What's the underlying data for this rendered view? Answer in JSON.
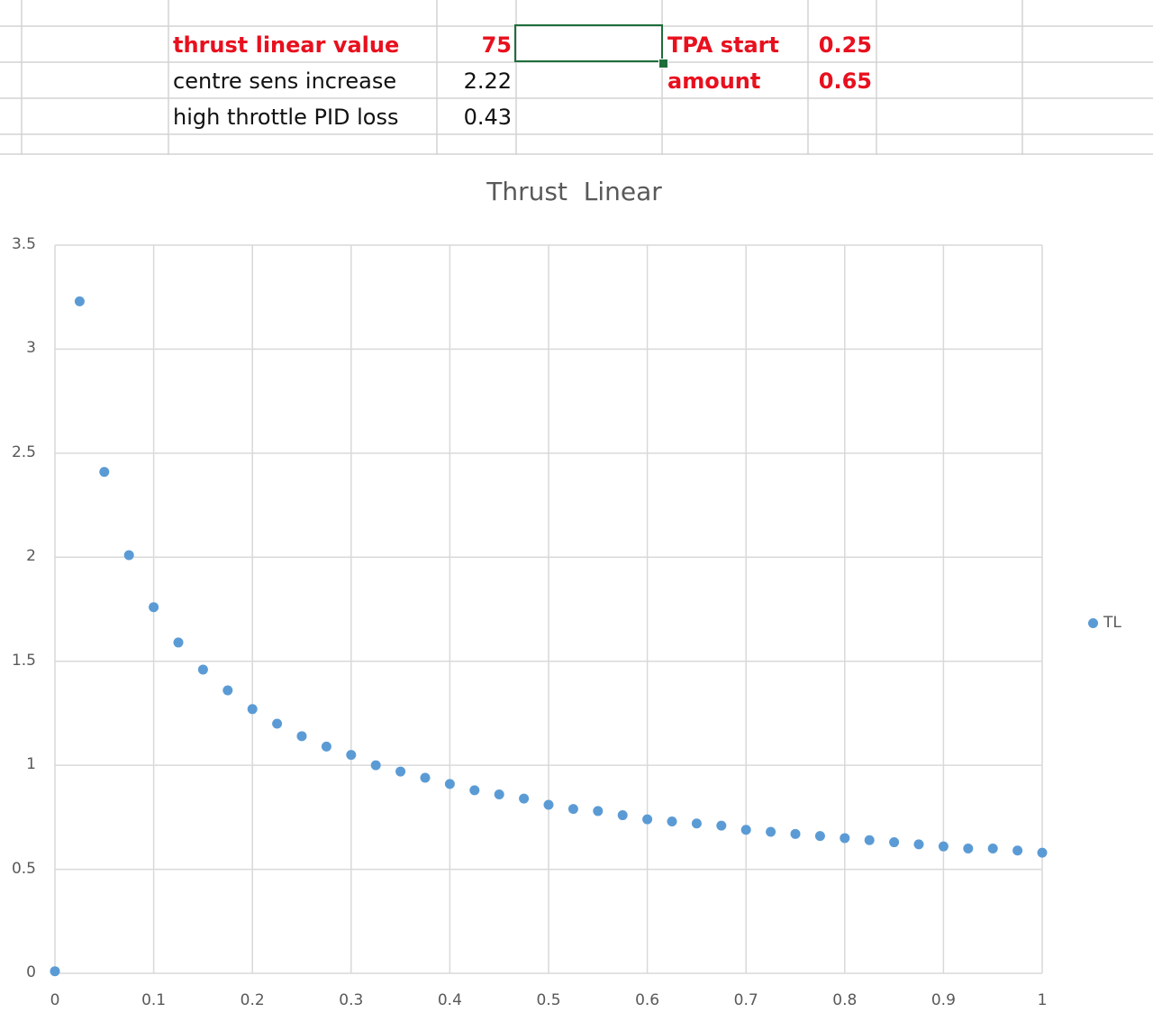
{
  "sheet": {
    "rows": [
      {
        "label": "thrust linear value",
        "value": "75",
        "label2": "TPA start",
        "value2": "0.25"
      },
      {
        "label": "centre sens increase",
        "value": "2.22",
        "label2": "amount",
        "value2": "0.65"
      },
      {
        "label": "high throttle PID loss",
        "value": "0.43"
      }
    ],
    "colors": {
      "highlight_text": "#e8101e",
      "selection": "#1e6e3a",
      "gridline": "#d4d4d4"
    }
  },
  "chart_data": {
    "type": "scatter",
    "title": "Thrust  Linear",
    "xlim": [
      0,
      1
    ],
    "ylim": [
      0,
      3.5
    ],
    "x_ticks": [
      "0",
      "0.1",
      "0.2",
      "0.3",
      "0.4",
      "0.5",
      "0.6",
      "0.7",
      "0.8",
      "0.9",
      "1"
    ],
    "y_ticks": [
      "0",
      "0.5",
      "1",
      "1.5",
      "2",
      "2.5",
      "3",
      "3.5"
    ],
    "grid": true,
    "legend_position": "right",
    "marker_color": "#5b9bd5",
    "series": [
      {
        "name": "TL",
        "points": [
          [
            0,
            0.01
          ],
          [
            0.025,
            3.23
          ],
          [
            0.05,
            2.41
          ],
          [
            0.075,
            2.01
          ],
          [
            0.1,
            1.76
          ],
          [
            0.125,
            1.59
          ],
          [
            0.15,
            1.46
          ],
          [
            0.175,
            1.36
          ],
          [
            0.2,
            1.27
          ],
          [
            0.225,
            1.2
          ],
          [
            0.25,
            1.14
          ],
          [
            0.275,
            1.09
          ],
          [
            0.3,
            1.05
          ],
          [
            0.325,
            1.0
          ],
          [
            0.35,
            0.97
          ],
          [
            0.375,
            0.94
          ],
          [
            0.4,
            0.91
          ],
          [
            0.425,
            0.88
          ],
          [
            0.45,
            0.86
          ],
          [
            0.475,
            0.84
          ],
          [
            0.5,
            0.81
          ],
          [
            0.525,
            0.79
          ],
          [
            0.55,
            0.78
          ],
          [
            0.575,
            0.76
          ],
          [
            0.6,
            0.74
          ],
          [
            0.625,
            0.73
          ],
          [
            0.65,
            0.72
          ],
          [
            0.675,
            0.71
          ],
          [
            0.7,
            0.69
          ],
          [
            0.725,
            0.68
          ],
          [
            0.75,
            0.67
          ],
          [
            0.775,
            0.66
          ],
          [
            0.8,
            0.65
          ],
          [
            0.825,
            0.64
          ],
          [
            0.85,
            0.63
          ],
          [
            0.875,
            0.62
          ],
          [
            0.9,
            0.61
          ],
          [
            0.925,
            0.6
          ],
          [
            0.95,
            0.6
          ],
          [
            0.975,
            0.59
          ],
          [
            1.0,
            0.58
          ]
        ]
      }
    ]
  }
}
